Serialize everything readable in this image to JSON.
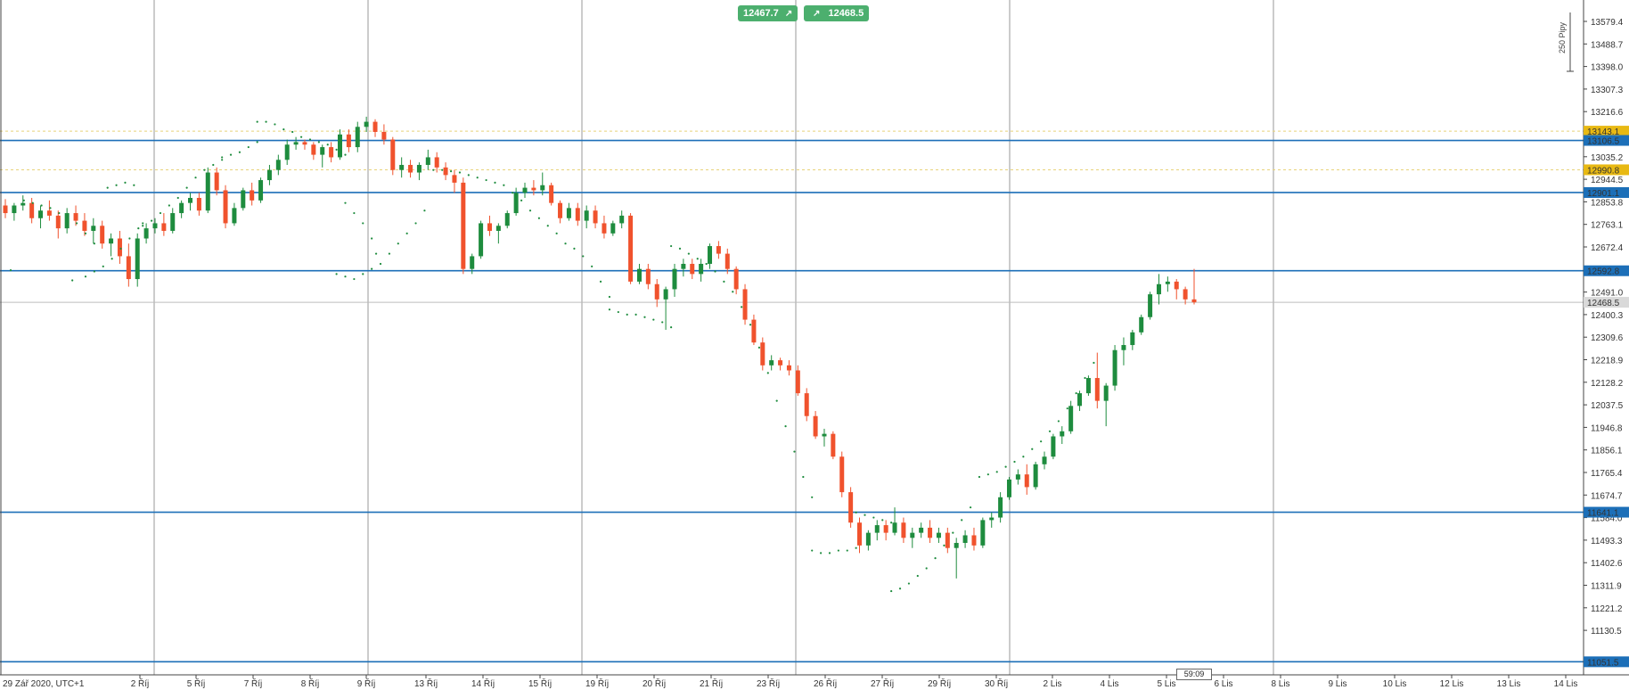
{
  "trade_panel": {
    "sell_price": "12467.7",
    "buy_price": "12468.5",
    "sell_arrow": "↗",
    "buy_arrow": "↗"
  },
  "pip_ruler_label": "250 Pipy",
  "candle_timer": "59:09",
  "colors": {
    "bull": "#1e8c3e",
    "bear": "#f0522d",
    "level_line": "#1c6fb8",
    "level_tag_bg": "#1c6fb8",
    "highlight_tag_bg": "#e8b913",
    "current_tag_bg": "#d9d9d9",
    "grid": "#9a9a9a",
    "sar_dot": "#1e8c3e"
  },
  "chart_data": {
    "type": "candlestick",
    "timezone_label": "29 Zář 2020, UTC+1",
    "ylim": [
      11000,
      13660
    ],
    "y_ticks": [
      "13579.4",
      "13488.7",
      "13398.0",
      "13307.3",
      "13216.6",
      "13125.9",
      "13035.2",
      "12944.5",
      "12853.8",
      "12763.1",
      "12672.4",
      "12581.7",
      "12491.0",
      "12400.3",
      "12309.6",
      "12218.9",
      "12128.2",
      "12037.5",
      "11946.8",
      "11856.1",
      "11765.4",
      "11674.7",
      "11584.0",
      "11493.3",
      "11402.6",
      "11311.9",
      "11221.2",
      "11130.5"
    ],
    "x_ticks": [
      "2 Říj",
      "5 Říj",
      "7 Říj",
      "8 Říj",
      "9 Říj",
      "13 Říj",
      "14 Říj",
      "15 Říj",
      "19 Říj",
      "20 Říj",
      "21 Říj",
      "23 Říj",
      "26 Říj",
      "27 Říj",
      "29 Říj",
      "30 Říj",
      "2 Lis",
      "4 Lis",
      "5 Lis",
      "6 Lis",
      "8 Lis",
      "9 Lis",
      "10 Lis",
      "12 Lis",
      "13 Lis",
      "14 Lis"
    ],
    "horizontal_levels": [
      {
        "value": 13106.5,
        "label": "13106.5",
        "style": "level"
      },
      {
        "value": 12901.1,
        "label": "12901.1",
        "style": "level"
      },
      {
        "value": 12592.8,
        "label": "12592.8",
        "style": "level"
      },
      {
        "value": 11641.1,
        "label": "11641.1",
        "style": "level"
      },
      {
        "value": 11051.5,
        "label": "11051.5",
        "style": "level"
      }
    ],
    "highlight_levels": [
      {
        "value": 13143.1,
        "label": "13143.1"
      },
      {
        "value": 12990.8,
        "label": "12990.8"
      }
    ],
    "current_price": {
      "value": 12468.5,
      "label": "12468.5"
    },
    "candles": [
      [
        12850,
        12875,
        12800,
        12820
      ],
      [
        12820,
        12860,
        12790,
        12850
      ],
      [
        12850,
        12890,
        12830,
        12860
      ],
      [
        12860,
        12880,
        12780,
        12800
      ],
      [
        12800,
        12850,
        12760,
        12830
      ],
      [
        12830,
        12870,
        12790,
        12810
      ],
      [
        12810,
        12830,
        12720,
        12760
      ],
      [
        12760,
        12840,
        12740,
        12820
      ],
      [
        12820,
        12850,
        12770,
        12790
      ],
      [
        12790,
        12820,
        12730,
        12750
      ],
      [
        12750,
        12800,
        12700,
        12770
      ],
      [
        12770,
        12790,
        12680,
        12700
      ],
      [
        12700,
        12740,
        12650,
        12720
      ],
      [
        12720,
        12750,
        12620,
        12650
      ],
      [
        12650,
        12700,
        12530,
        12560
      ],
      [
        12560,
        12740,
        12530,
        12720
      ],
      [
        12720,
        12780,
        12700,
        12760
      ],
      [
        12760,
        12800,
        12740,
        12780
      ],
      [
        12780,
        12820,
        12730,
        12750
      ],
      [
        12750,
        12840,
        12740,
        12820
      ],
      [
        12820,
        12870,
        12800,
        12860
      ],
      [
        12860,
        12900,
        12830,
        12880
      ],
      [
        12880,
        12900,
        12810,
        12830
      ],
      [
        12830,
        13000,
        12820,
        12980
      ],
      [
        12980,
        13000,
        12890,
        12910
      ],
      [
        12910,
        12930,
        12760,
        12780
      ],
      [
        12780,
        12860,
        12770,
        12840
      ],
      [
        12840,
        12920,
        12830,
        12910
      ],
      [
        12910,
        12940,
        12850,
        12870
      ],
      [
        12870,
        12960,
        12860,
        12950
      ],
      [
        12950,
        13010,
        12930,
        12990
      ],
      [
        12990,
        13050,
        12970,
        13030
      ],
      [
        13030,
        13110,
        13010,
        13090
      ],
      [
        13090,
        13120,
        13070,
        13100
      ],
      [
        13100,
        13110,
        13070,
        13090
      ],
      [
        13090,
        13100,
        13030,
        13050
      ],
      [
        13050,
        13090,
        13000,
        13080
      ],
      [
        13080,
        13100,
        13020,
        13040
      ],
      [
        13040,
        13150,
        13030,
        13130
      ],
      [
        13130,
        13150,
        13060,
        13080
      ],
      [
        13080,
        13180,
        13060,
        13160
      ],
      [
        13160,
        13200,
        13140,
        13180
      ],
      [
        13180,
        13190,
        13120,
        13140
      ],
      [
        13140,
        13170,
        13090,
        13110
      ],
      [
        13110,
        13120,
        12970,
        12990
      ],
      [
        12990,
        13040,
        12960,
        13010
      ],
      [
        13010,
        13030,
        12960,
        12980
      ],
      [
        12980,
        13020,
        12950,
        13010
      ],
      [
        13010,
        13070,
        12990,
        13040
      ],
      [
        13040,
        13060,
        12980,
        13000
      ],
      [
        13000,
        13020,
        12950,
        12970
      ],
      [
        12970,
        12990,
        12900,
        12940
      ],
      [
        12940,
        12960,
        12580,
        12600
      ],
      [
        12600,
        12660,
        12580,
        12650
      ],
      [
        12650,
        12790,
        12640,
        12780
      ],
      [
        12780,
        12810,
        12730,
        12750
      ],
      [
        12750,
        12780,
        12700,
        12770
      ],
      [
        12770,
        12830,
        12760,
        12820
      ],
      [
        12820,
        12920,
        12810,
        12900
      ],
      [
        12900,
        12940,
        12880,
        12920
      ],
      [
        12920,
        12950,
        12890,
        12910
      ],
      [
        12910,
        12980,
        12890,
        12930
      ],
      [
        12930,
        12940,
        12850,
        12860
      ],
      [
        12860,
        12870,
        12780,
        12800
      ],
      [
        12800,
        12860,
        12790,
        12840
      ],
      [
        12840,
        12860,
        12770,
        12790
      ],
      [
        12790,
        12850,
        12760,
        12830
      ],
      [
        12830,
        12850,
        12760,
        12780
      ],
      [
        12780,
        12810,
        12720,
        12740
      ],
      [
        12740,
        12790,
        12730,
        12780
      ],
      [
        12780,
        12830,
        12760,
        12810
      ],
      [
        12810,
        12820,
        12540,
        12550
      ],
      [
        12550,
        12620,
        12540,
        12600
      ],
      [
        12600,
        12620,
        12520,
        12540
      ],
      [
        12540,
        12560,
        12450,
        12480
      ],
      [
        12480,
        12530,
        12360,
        12520
      ],
      [
        12520,
        12620,
        12490,
        12600
      ],
      [
        12600,
        12640,
        12570,
        12620
      ],
      [
        12620,
        12640,
        12560,
        12580
      ],
      [
        12580,
        12640,
        12550,
        12620
      ],
      [
        12620,
        12700,
        12600,
        12690
      ],
      [
        12690,
        12710,
        12640,
        12660
      ],
      [
        12660,
        12680,
        12580,
        12600
      ],
      [
        12600,
        12610,
        12500,
        12520
      ],
      [
        12520,
        12540,
        12380,
        12400
      ],
      [
        12400,
        12420,
        12300,
        12310
      ],
      [
        12310,
        12330,
        12200,
        12220
      ],
      [
        12220,
        12260,
        12200,
        12240
      ],
      [
        12240,
        12250,
        12200,
        12220
      ],
      [
        12220,
        12240,
        12180,
        12200
      ],
      [
        12200,
        12220,
        12100,
        12110
      ],
      [
        12110,
        12130,
        12000,
        12020
      ],
      [
        12020,
        12040,
        11930,
        11940
      ],
      [
        11940,
        11970,
        11900,
        11950
      ],
      [
        11950,
        11960,
        11850,
        11860
      ],
      [
        11860,
        11880,
        11700,
        11720
      ],
      [
        11720,
        11740,
        11580,
        11600
      ],
      [
        11600,
        11620,
        11480,
        11510
      ],
      [
        11510,
        11570,
        11490,
        11560
      ],
      [
        11560,
        11610,
        11530,
        11590
      ],
      [
        11590,
        11610,
        11530,
        11560
      ],
      [
        11560,
        11660,
        11550,
        11600
      ],
      [
        11600,
        11620,
        11520,
        11540
      ],
      [
        11540,
        11580,
        11500,
        11560
      ],
      [
        11560,
        11600,
        11540,
        11580
      ],
      [
        11580,
        11610,
        11520,
        11540
      ],
      [
        11540,
        11580,
        11520,
        11560
      ],
      [
        11560,
        11580,
        11480,
        11500
      ],
      [
        11500,
        11540,
        11380,
        11520
      ],
      [
        11520,
        11570,
        11500,
        11550
      ],
      [
        11550,
        11580,
        11490,
        11510
      ],
      [
        11510,
        11620,
        11500,
        11610
      ],
      [
        11610,
        11640,
        11580,
        11620
      ],
      [
        11620,
        11720,
        11600,
        11700
      ],
      [
        11700,
        11780,
        11690,
        11770
      ],
      [
        11770,
        11810,
        11750,
        11790
      ],
      [
        11790,
        11830,
        11710,
        11740
      ],
      [
        11740,
        11840,
        11730,
        11830
      ],
      [
        11830,
        11880,
        11810,
        11860
      ],
      [
        11860,
        11950,
        11850,
        11940
      ],
      [
        11940,
        11980,
        11910,
        11960
      ],
      [
        11960,
        12080,
        11950,
        12060
      ],
      [
        12060,
        12120,
        12040,
        12110
      ],
      [
        12110,
        12180,
        12100,
        12170
      ],
      [
        12170,
        12270,
        12050,
        12080
      ],
      [
        12080,
        12150,
        11980,
        12140
      ],
      [
        12140,
        12300,
        12120,
        12280
      ],
      [
        12280,
        12330,
        12220,
        12300
      ],
      [
        12300,
        12360,
        12280,
        12350
      ],
      [
        12350,
        12420,
        12340,
        12410
      ],
      [
        12410,
        12510,
        12400,
        12500
      ],
      [
        12500,
        12580,
        12460,
        12540
      ],
      [
        12540,
        12570,
        12510,
        12550
      ],
      [
        12550,
        12560,
        12480,
        12520
      ],
      [
        12520,
        12530,
        12460,
        12480
      ],
      [
        12480,
        12600,
        12460,
        12468.5
      ]
    ],
    "sar": [
      [
        0,
        12595
      ],
      [
        3,
        12870
      ],
      [
        5,
        12860
      ],
      [
        7,
        12850
      ],
      [
        9,
        12840
      ],
      [
        11,
        12820
      ],
      [
        13,
        12800
      ],
      [
        15,
        12780
      ],
      [
        17,
        12740
      ],
      [
        19,
        12700
      ],
      [
        14,
        12555
      ],
      [
        17,
        12570
      ],
      [
        19,
        12590
      ],
      [
        21,
        12610
      ],
      [
        23,
        12640
      ],
      [
        25,
        12680
      ],
      [
        27,
        12720
      ],
      [
        29,
        12760
      ],
      [
        30,
        12780
      ],
      [
        22,
        12920
      ],
      [
        24,
        12930
      ],
      [
        26,
        12940
      ],
      [
        28,
        12930
      ],
      [
        30,
        12770
      ],
      [
        32,
        12790
      ],
      [
        34,
        12820
      ],
      [
        36,
        12850
      ],
      [
        38,
        12880
      ],
      [
        40,
        12920
      ],
      [
        42,
        12960
      ],
      [
        44,
        12990
      ],
      [
        46,
        13010
      ],
      [
        48,
        13030
      ],
      [
        48,
        13040
      ],
      [
        50,
        13050
      ],
      [
        52,
        13060
      ],
      [
        54,
        13080
      ],
      [
        56,
        13100
      ],
      [
        56,
        13180
      ],
      [
        58,
        13180
      ],
      [
        60,
        13170
      ],
      [
        62,
        13150
      ],
      [
        64,
        13140
      ],
      [
        66,
        13120
      ],
      [
        68,
        13110
      ],
      [
        70,
        13100
      ],
      [
        72,
        13090
      ],
      [
        74,
        13070
      ],
      [
        76,
        13050
      ],
      [
        76,
        12860
      ],
      [
        78,
        12820
      ],
      [
        80,
        12780
      ],
      [
        82,
        12720
      ],
      [
        83,
        12660
      ],
      [
        74,
        12580
      ],
      [
        76,
        12570
      ],
      [
        78,
        12560
      ],
      [
        80,
        12580
      ],
      [
        82,
        12600
      ],
      [
        84,
        12620
      ],
      [
        86,
        12660
      ],
      [
        88,
        12700
      ],
      [
        90,
        12740
      ],
      [
        92,
        12780
      ],
      [
        94,
        12830
      ],
      [
        96,
        12990
      ],
      [
        98,
        12990
      ],
      [
        100,
        12985
      ],
      [
        102,
        12980
      ],
      [
        104,
        12970
      ],
      [
        106,
        12960
      ],
      [
        108,
        12950
      ],
      [
        110,
        12940
      ],
      [
        112,
        12930
      ],
      [
        114,
        12900
      ],
      [
        116,
        12870
      ],
      [
        118,
        12830
      ],
      [
        120,
        12800
      ],
      [
        122,
        12770
      ],
      [
        124,
        12740
      ],
      [
        126,
        12700
      ],
      [
        128,
        12680
      ],
      [
        130,
        12650
      ],
      [
        132,
        12610
      ],
      [
        134,
        12550
      ],
      [
        136,
        12490
      ],
      [
        136,
        12440
      ],
      [
        138,
        12430
      ],
      [
        140,
        12420
      ],
      [
        142,
        12420
      ],
      [
        144,
        12410
      ],
      [
        146,
        12400
      ],
      [
        148,
        12390
      ],
      [
        150,
        12370
      ],
      [
        150,
        12690
      ],
      [
        152,
        12680
      ],
      [
        154,
        12660
      ],
      [
        156,
        12640
      ],
      [
        158,
        12620
      ],
      [
        160,
        12590
      ],
      [
        162,
        12550
      ],
      [
        164,
        12510
      ],
      [
        166,
        12450
      ],
      [
        168,
        12380
      ],
      [
        170,
        12290
      ],
      [
        172,
        12190
      ],
      [
        174,
        12080
      ],
      [
        176,
        11980
      ],
      [
        178,
        11880
      ],
      [
        180,
        11780
      ],
      [
        182,
        11700
      ],
      [
        182,
        11490
      ],
      [
        184,
        11480
      ],
      [
        186,
        11480
      ],
      [
        188,
        11490
      ],
      [
        190,
        11490
      ],
      [
        192,
        11500
      ],
      [
        192,
        11640
      ],
      [
        194,
        11630
      ],
      [
        196,
        11620
      ],
      [
        198,
        11610
      ],
      [
        200,
        11600
      ],
      [
        200,
        11330
      ],
      [
        202,
        11340
      ],
      [
        204,
        11360
      ],
      [
        206,
        11390
      ],
      [
        208,
        11420
      ],
      [
        210,
        11460
      ],
      [
        212,
        11510
      ],
      [
        214,
        11560
      ],
      [
        216,
        11610
      ],
      [
        218,
        11660
      ],
      [
        220,
        11780
      ],
      [
        222,
        11790
      ],
      [
        224,
        11800
      ],
      [
        226,
        11820
      ],
      [
        228,
        11840
      ],
      [
        230,
        11860
      ],
      [
        232,
        11890
      ],
      [
        234,
        11920
      ],
      [
        236,
        11960
      ],
      [
        238,
        12000
      ],
      [
        240,
        12050
      ],
      [
        242,
        12110
      ],
      [
        244,
        12170
      ],
      [
        246,
        12230
      ]
    ]
  }
}
